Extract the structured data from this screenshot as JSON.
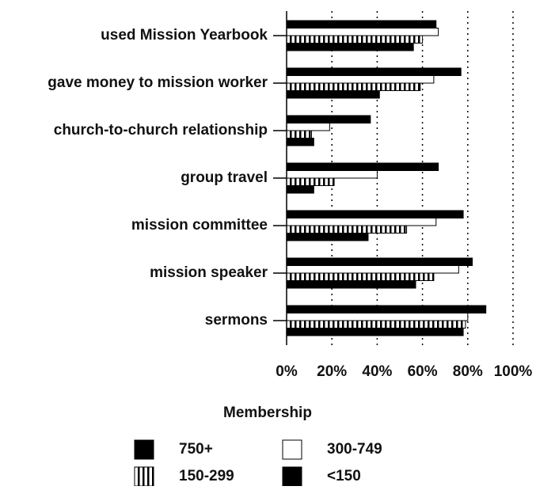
{
  "chart_data": {
    "type": "hbar",
    "categories": [
      "used Mission Yearbook",
      "gave money to mission worker",
      "church-to-church relationship",
      "group travel",
      "mission committee",
      "mission speaker",
      "sermons"
    ],
    "series": [
      {
        "name": "750+",
        "color": "#000000",
        "values": [
          66,
          77,
          37,
          67,
          78,
          82,
          88
        ]
      },
      {
        "name": "300-749",
        "color": "#ffffff",
        "values": [
          67,
          65,
          19,
          40,
          66,
          76,
          80
        ]
      },
      {
        "name": "150-299",
        "color": "#ffffff",
        "pattern": "stripes",
        "values": [
          60,
          59,
          11,
          21,
          53,
          65,
          79
        ]
      },
      {
        "name": "<150",
        "color": "#000000",
        "values": [
          56,
          41,
          12,
          12,
          36,
          57,
          78
        ]
      }
    ],
    "xlim": [
      0,
      100
    ],
    "xticks": [
      {
        "value": 0,
        "label": "0%"
      },
      {
        "value": 20,
        "label": "20%"
      },
      {
        "value": 40,
        "label": "40%"
      },
      {
        "value": 60,
        "label": "60%"
      },
      {
        "value": 80,
        "label": "80%"
      },
      {
        "value": 100,
        "label": "100%"
      }
    ],
    "grid": true,
    "legend_title": "Membership",
    "legend": "bottom"
  }
}
